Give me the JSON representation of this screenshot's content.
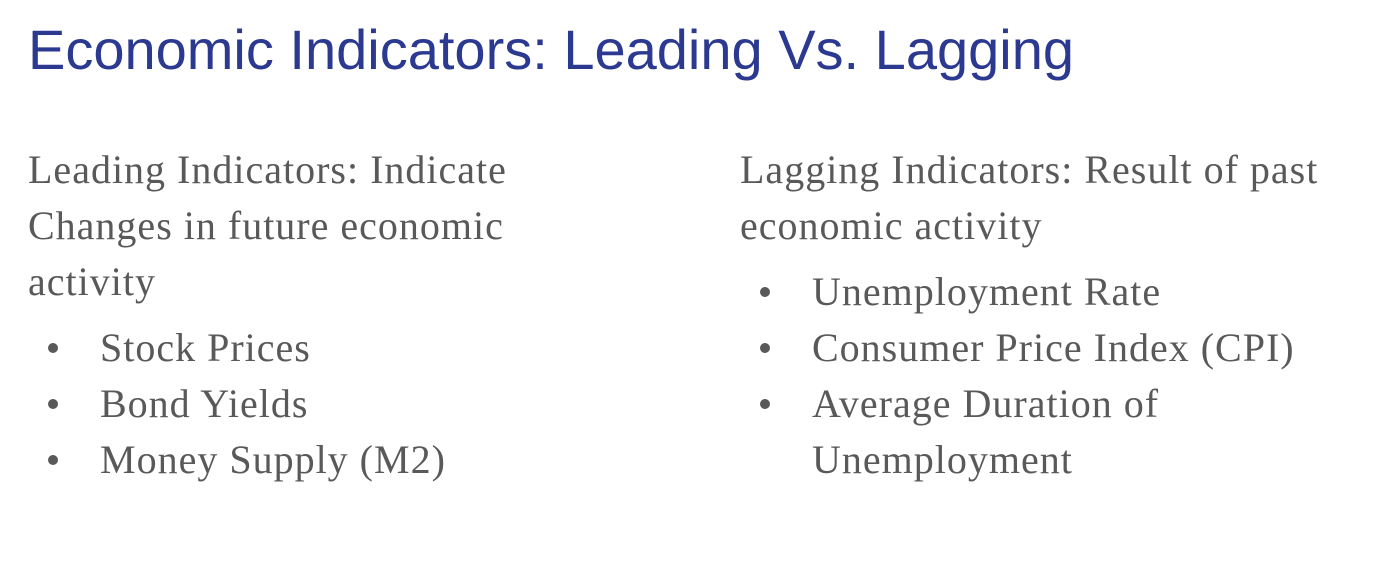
{
  "title": "Economic Indicators: Leading Vs. Lagging",
  "leading": {
    "intro": "Leading Indicators: Indicate Changes in future economic activity",
    "items": [
      "Stock Prices",
      "Bond Yields",
      "Money Supply (M2)"
    ]
  },
  "lagging": {
    "intro": "Lagging Indicators: Result of past economic activity",
    "items": [
      "Unemployment Rate",
      "Consumer Price Index (CPI)",
      "Average Duration of Unemployment"
    ]
  },
  "colors": {
    "title": "#2b3990",
    "body": "#595959"
  },
  "icons": {
    "bullet": "bullet-dot-icon"
  }
}
